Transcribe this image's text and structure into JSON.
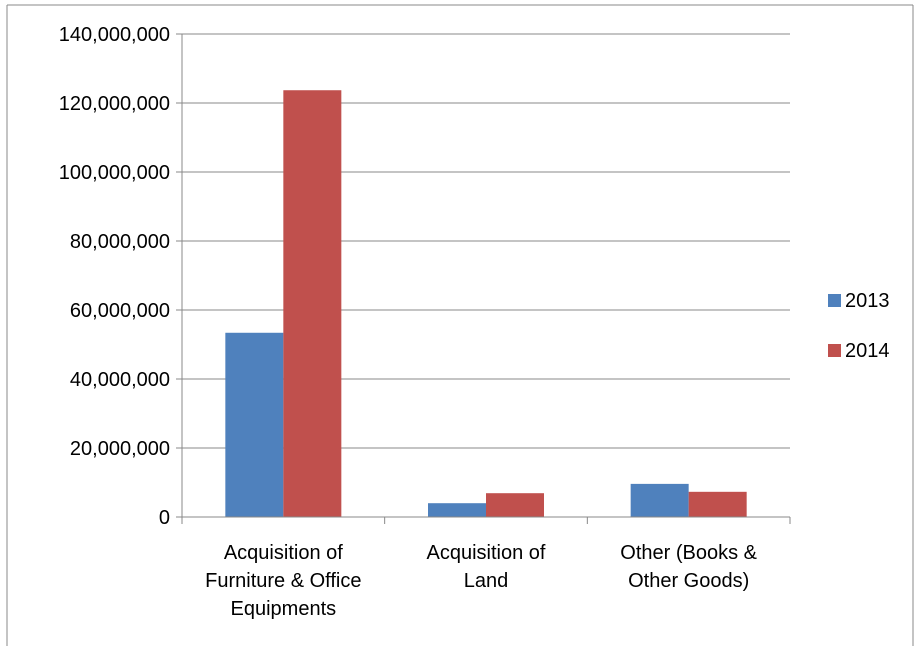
{
  "chart_data": {
    "type": "bar",
    "title": "",
    "xlabel": "",
    "ylabel": "",
    "categories": [
      [
        "Acquisition of",
        "Furniture & Office",
        "Equipments"
      ],
      [
        "Acquisition of",
        "Land"
      ],
      [
        "Other (Books &",
        "Other Goods)"
      ]
    ],
    "series": [
      {
        "name": "2013",
        "color": "#4F81BD",
        "values": [
          53400000,
          4000000,
          9600000
        ]
      },
      {
        "name": "2014",
        "color": "#C0504D",
        "values": [
          123700000,
          6900000,
          7300000
        ]
      }
    ],
    "ylim": [
      0,
      140000000
    ],
    "yticks": [
      {
        "value": 0,
        "label": "0"
      },
      {
        "value": 20000000,
        "label": "20,000,000"
      },
      {
        "value": 40000000,
        "label": "40,000,000"
      },
      {
        "value": 60000000,
        "label": "60,000,000"
      },
      {
        "value": 80000000,
        "label": "80,000,000"
      },
      {
        "value": 100000000,
        "label": "100,000,000"
      },
      {
        "value": 120000000,
        "label": "120,000,000"
      },
      {
        "value": 140000000,
        "label": "140,000,000"
      }
    ],
    "grid": true,
    "legend_position": "right"
  }
}
